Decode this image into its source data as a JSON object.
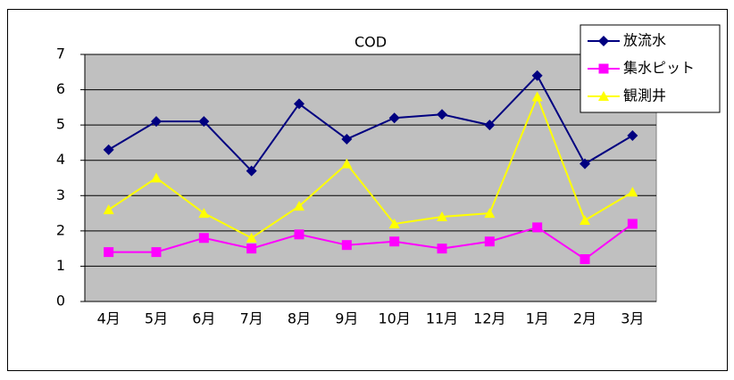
{
  "chart_data": {
    "type": "line",
    "title": "COD",
    "categories": [
      "4月",
      "5月",
      "6月",
      "7月",
      "8月",
      "9月",
      "10月",
      "11月",
      "12月",
      "1月",
      "2月",
      "3月"
    ],
    "series": [
      {
        "name": "放流水",
        "color": "#000080",
        "marker": "diamond",
        "values": [
          4.3,
          5.1,
          5.1,
          3.7,
          5.6,
          4.6,
          5.2,
          5.3,
          5.0,
          6.4,
          3.9,
          4.7
        ]
      },
      {
        "name": "集水ピット",
        "color": "#ff00ff",
        "marker": "square",
        "values": [
          1.4,
          1.4,
          1.8,
          1.5,
          1.9,
          1.6,
          1.7,
          1.5,
          1.7,
          2.1,
          1.2,
          2.2
        ]
      },
      {
        "name": "観測井",
        "color": "#ffff00",
        "marker": "triangle",
        "values": [
          2.6,
          3.5,
          2.5,
          1.8,
          2.7,
          3.9,
          2.2,
          2.4,
          2.5,
          5.8,
          2.3,
          3.1
        ]
      }
    ],
    "ylim": [
      0,
      7
    ],
    "yticks": [
      0,
      1,
      2,
      3,
      4,
      5,
      6,
      7
    ],
    "grid": true,
    "legend": "top-right",
    "plot_background": "#c0c0c0"
  }
}
